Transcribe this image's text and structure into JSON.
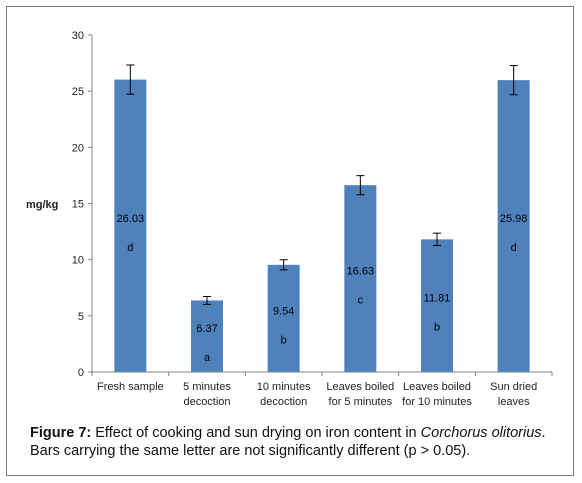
{
  "chart_data": {
    "type": "bar",
    "ylabel": "mg/kg",
    "xlabel": "",
    "ylim": [
      0,
      30
    ],
    "yticks": [
      0,
      5,
      10,
      15,
      20,
      25,
      30
    ],
    "grid": false,
    "legend": "none",
    "bar_color": "#4f81bd",
    "categories": [
      [
        "Fresh sample"
      ],
      [
        "5 minutes",
        "decoction"
      ],
      [
        "10 minutes",
        "decoction"
      ],
      [
        "Leaves boiled",
        "for 5 minutes"
      ],
      [
        "Leaves boiled",
        "for 10 minutes"
      ],
      [
        "Sun dried",
        "leaves"
      ]
    ],
    "values": [
      26.03,
      6.37,
      9.54,
      16.63,
      11.81,
      25.98
    ],
    "value_labels": [
      "26.03",
      "6.37",
      "9.54",
      "16.63",
      "11.81",
      "25.98"
    ],
    "errors": [
      1.3,
      0.35,
      0.45,
      0.85,
      0.55,
      1.3
    ],
    "letters": [
      "d",
      "a",
      "b",
      "c",
      "b",
      "d"
    ]
  },
  "caption": {
    "label": "Figure 7:",
    "text1": " Effect of cooking and sun drying on iron content in ",
    "species": "Corchorus olitorius",
    "text2": ". Bars carrying the same letter are not significantly different (p > 0.05)."
  }
}
